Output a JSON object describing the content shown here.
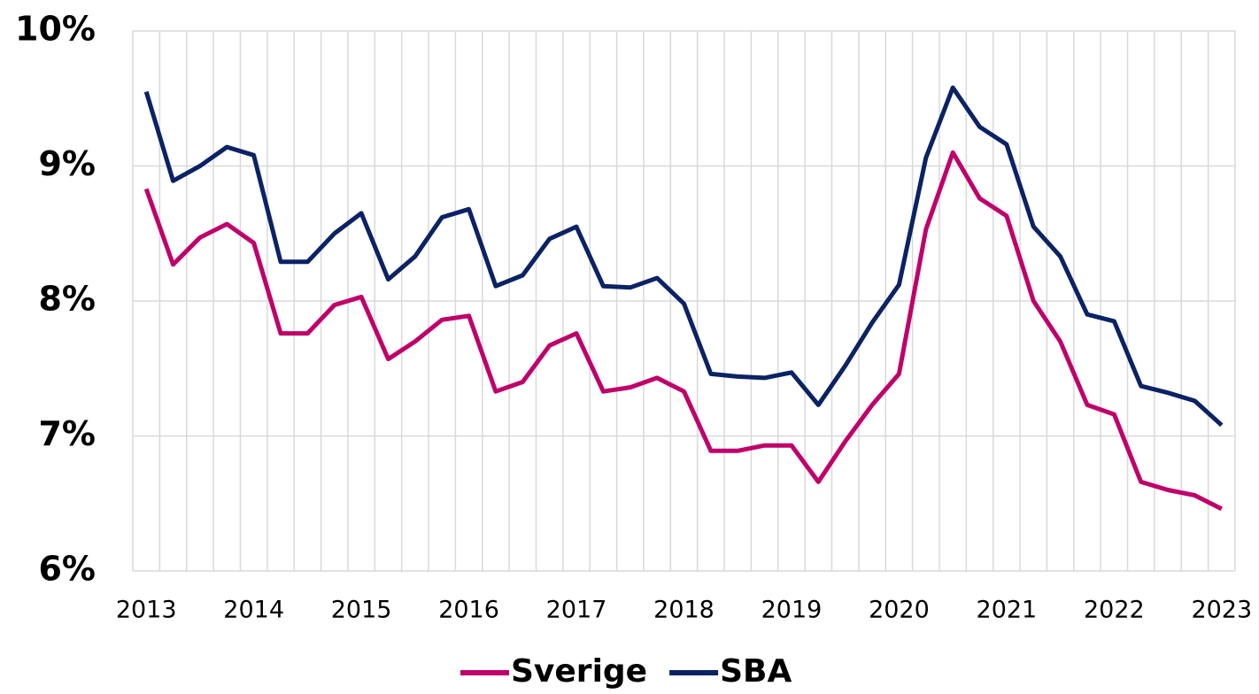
{
  "chart_data": {
    "type": "line",
    "categories": [
      "2013",
      null,
      null,
      null,
      "2014",
      null,
      null,
      null,
      "2015",
      null,
      null,
      null,
      "2016",
      null,
      null,
      null,
      "2017",
      null,
      null,
      null,
      "2018",
      null,
      null,
      null,
      "2019",
      null,
      null,
      null,
      "2020",
      null,
      null,
      null,
      "2021",
      null,
      null,
      null,
      "2022",
      null,
      null,
      null,
      "2023"
    ],
    "series": [
      {
        "name": "Sverige",
        "color": "#c0006a",
        "values": [
          8.83,
          8.27,
          8.47,
          8.57,
          8.43,
          7.76,
          7.76,
          7.97,
          8.03,
          7.57,
          7.7,
          7.86,
          7.89,
          7.33,
          7.4,
          7.67,
          7.76,
          7.33,
          7.36,
          7.43,
          7.33,
          6.89,
          6.89,
          6.93,
          6.93,
          6.66,
          6.96,
          7.23,
          7.46,
          8.53,
          9.1,
          8.76,
          8.63,
          8.0,
          7.7,
          7.23,
          7.16,
          6.66,
          6.6,
          6.56,
          6.46
        ]
      },
      {
        "name": "SBA",
        "color": "#0b2265",
        "values": [
          9.55,
          8.89,
          9.0,
          9.14,
          9.08,
          8.29,
          8.29,
          8.5,
          8.65,
          8.16,
          8.33,
          8.62,
          8.68,
          8.11,
          8.19,
          8.46,
          8.55,
          8.11,
          8.1,
          8.17,
          7.98,
          7.46,
          7.44,
          7.43,
          7.47,
          7.23,
          7.52,
          7.84,
          8.12,
          9.06,
          9.58,
          9.29,
          9.16,
          8.55,
          8.33,
          7.9,
          7.85,
          7.37,
          7.32,
          7.26,
          7.08
        ]
      }
    ],
    "ylim": [
      6,
      10
    ],
    "yticks": [
      {
        "value": 6,
        "label": "6%"
      },
      {
        "value": 7,
        "label": "7%"
      },
      {
        "value": 8,
        "label": "8%"
      },
      {
        "value": 9,
        "label": "9%"
      },
      {
        "value": 10,
        "label": "10%"
      }
    ],
    "grid": true,
    "legend": "bottom"
  }
}
